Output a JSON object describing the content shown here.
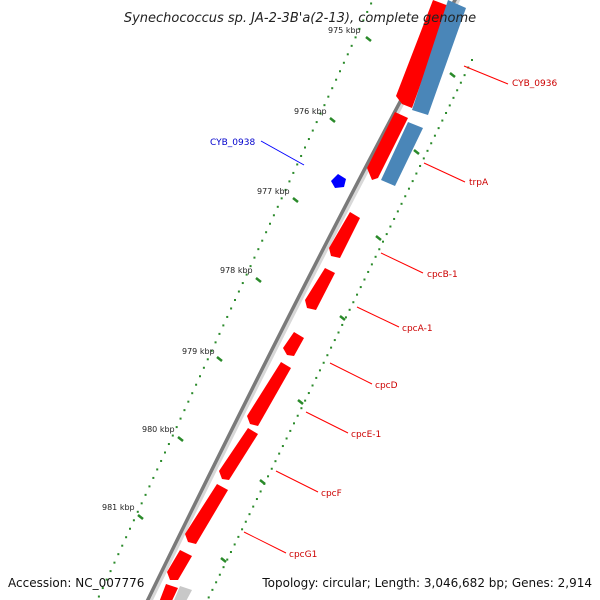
{
  "title": "Synechococcus sp. JA-2-3B'a(2-13), complete genome",
  "footer": {
    "accession": "Accession: NC_007776",
    "topology": "Topology: circular; Length: 3,046,682 bp; Genes: 2,914"
  },
  "colors": {
    "forward_gene": "#ff0000",
    "reverse_gene": "#4a86b8",
    "other_gene": "#c8c8c8",
    "highlight": "#0000ff",
    "backbone": "#7a7a7a",
    "ticks": "#2a8a2a",
    "label_red": "#cc0000",
    "label_blue": "#0000cc"
  },
  "kbp_labels": [
    "975 kbp",
    "976 kbp",
    "977 kbp",
    "978 kbp",
    "979 kbp",
    "980 kbp",
    "981 kbp"
  ],
  "genes": [
    {
      "name": "CYB_0936",
      "color": "red"
    },
    {
      "name": "trpA",
      "color": "red"
    },
    {
      "name": "CYB_0938",
      "color": "blue"
    },
    {
      "name": "cpcB-1",
      "color": "red"
    },
    {
      "name": "cpcA-1",
      "color": "red"
    },
    {
      "name": "cpcD",
      "color": "red"
    },
    {
      "name": "cpcE-1",
      "color": "red"
    },
    {
      "name": "cpcF",
      "color": "red"
    },
    {
      "name": "cpcG1",
      "color": "red"
    }
  ]
}
